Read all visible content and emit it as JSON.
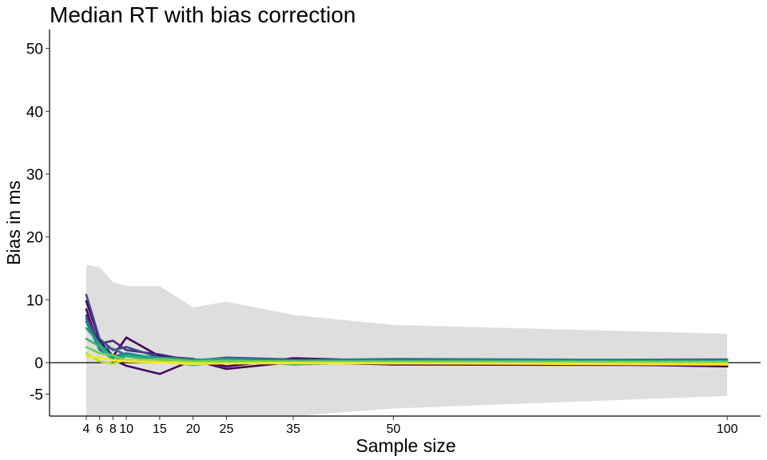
{
  "chart_data": {
    "type": "line",
    "title": "Median RT with bias correction",
    "xlabel": "Sample size",
    "ylabel": "Bias in ms",
    "xlim": [
      -1.5,
      105
    ],
    "ylim": [
      -8.5,
      53
    ],
    "x_ticks": [
      4,
      6,
      8,
      10,
      15,
      20,
      25,
      35,
      50,
      100
    ],
    "x_tick_labels": [
      "4",
      "6",
      "8",
      "10",
      "15",
      "20",
      "25",
      "35",
      "50",
      "100"
    ],
    "y_ticks": [
      50,
      40,
      30,
      20,
      10,
      0,
      -5
    ],
    "y_tick_labels": [
      "50",
      "40",
      "30",
      "20",
      "10",
      "0",
      "-5"
    ],
    "grid": false,
    "reference_line_y": 0,
    "x": [
      4,
      6,
      8,
      10,
      15,
      20,
      25,
      35,
      50,
      100
    ],
    "band": {
      "upper": [
        15.6,
        15.2,
        12.8,
        12.2,
        12.2,
        8.8,
        9.7,
        7.6,
        6.0,
        4.6
      ],
      "lower": [
        -8.5,
        -8.5,
        -8.5,
        -8.5,
        -8.5,
        -8.5,
        -8.5,
        -8.5,
        -7.3,
        -5.3
      ],
      "color": "#dedede"
    },
    "series": [
      {
        "color": "#440154",
        "values": [
          9.8,
          3.5,
          1.0,
          4.0,
          1.0,
          0.6,
          -0.6,
          0.7,
          0.3,
          -0.6
        ]
      },
      {
        "color": "#46085c",
        "values": [
          8.5,
          2.2,
          0.5,
          -0.5,
          -1.8,
          0.4,
          -1.0,
          0.1,
          -0.3,
          -0.4
        ]
      },
      {
        "color": "#482878",
        "values": [
          7.5,
          3.0,
          3.5,
          2.0,
          1.3,
          0.3,
          0.8,
          0.5,
          0.4,
          0.5
        ]
      },
      {
        "color": "#3e4989",
        "values": [
          10.8,
          3.8,
          2.0,
          2.5,
          0.8,
          0.5,
          0.2,
          0.3,
          0.4,
          0.2
        ]
      },
      {
        "color": "#31688e",
        "values": [
          7.0,
          2.5,
          2.2,
          1.2,
          0.5,
          0.2,
          0.4,
          0.2,
          0.3,
          0.3
        ]
      },
      {
        "color": "#26828e",
        "values": [
          6.5,
          2.0,
          1.0,
          1.5,
          0.6,
          0.4,
          0.7,
          0.4,
          0.6,
          0.4
        ]
      },
      {
        "color": "#1f9e89",
        "values": [
          5.5,
          3.0,
          0.8,
          1.2,
          0.8,
          0.5,
          0.5,
          -0.3,
          0.2,
          0.3
        ]
      },
      {
        "color": "#35b779",
        "values": [
          3.8,
          2.6,
          0.3,
          1.0,
          0.3,
          -0.4,
          0.2,
          0.1,
          -0.1,
          0.2
        ]
      },
      {
        "color": "#6ece58",
        "values": [
          2.5,
          1.5,
          1.2,
          0.3,
          0.6,
          0.2,
          0.3,
          0.2,
          0.2,
          0.1
        ]
      },
      {
        "color": "#b5de2b",
        "values": [
          1.5,
          0.2,
          -0.2,
          0.5,
          0.2,
          0.0,
          -0.1,
          0.0,
          -0.1,
          -0.1
        ]
      },
      {
        "color": "#fde725",
        "values": [
          1.0,
          0.8,
          0.4,
          0.2,
          0.0,
          -0.2,
          -0.1,
          -0.1,
          -0.1,
          -0.3
        ]
      }
    ]
  }
}
